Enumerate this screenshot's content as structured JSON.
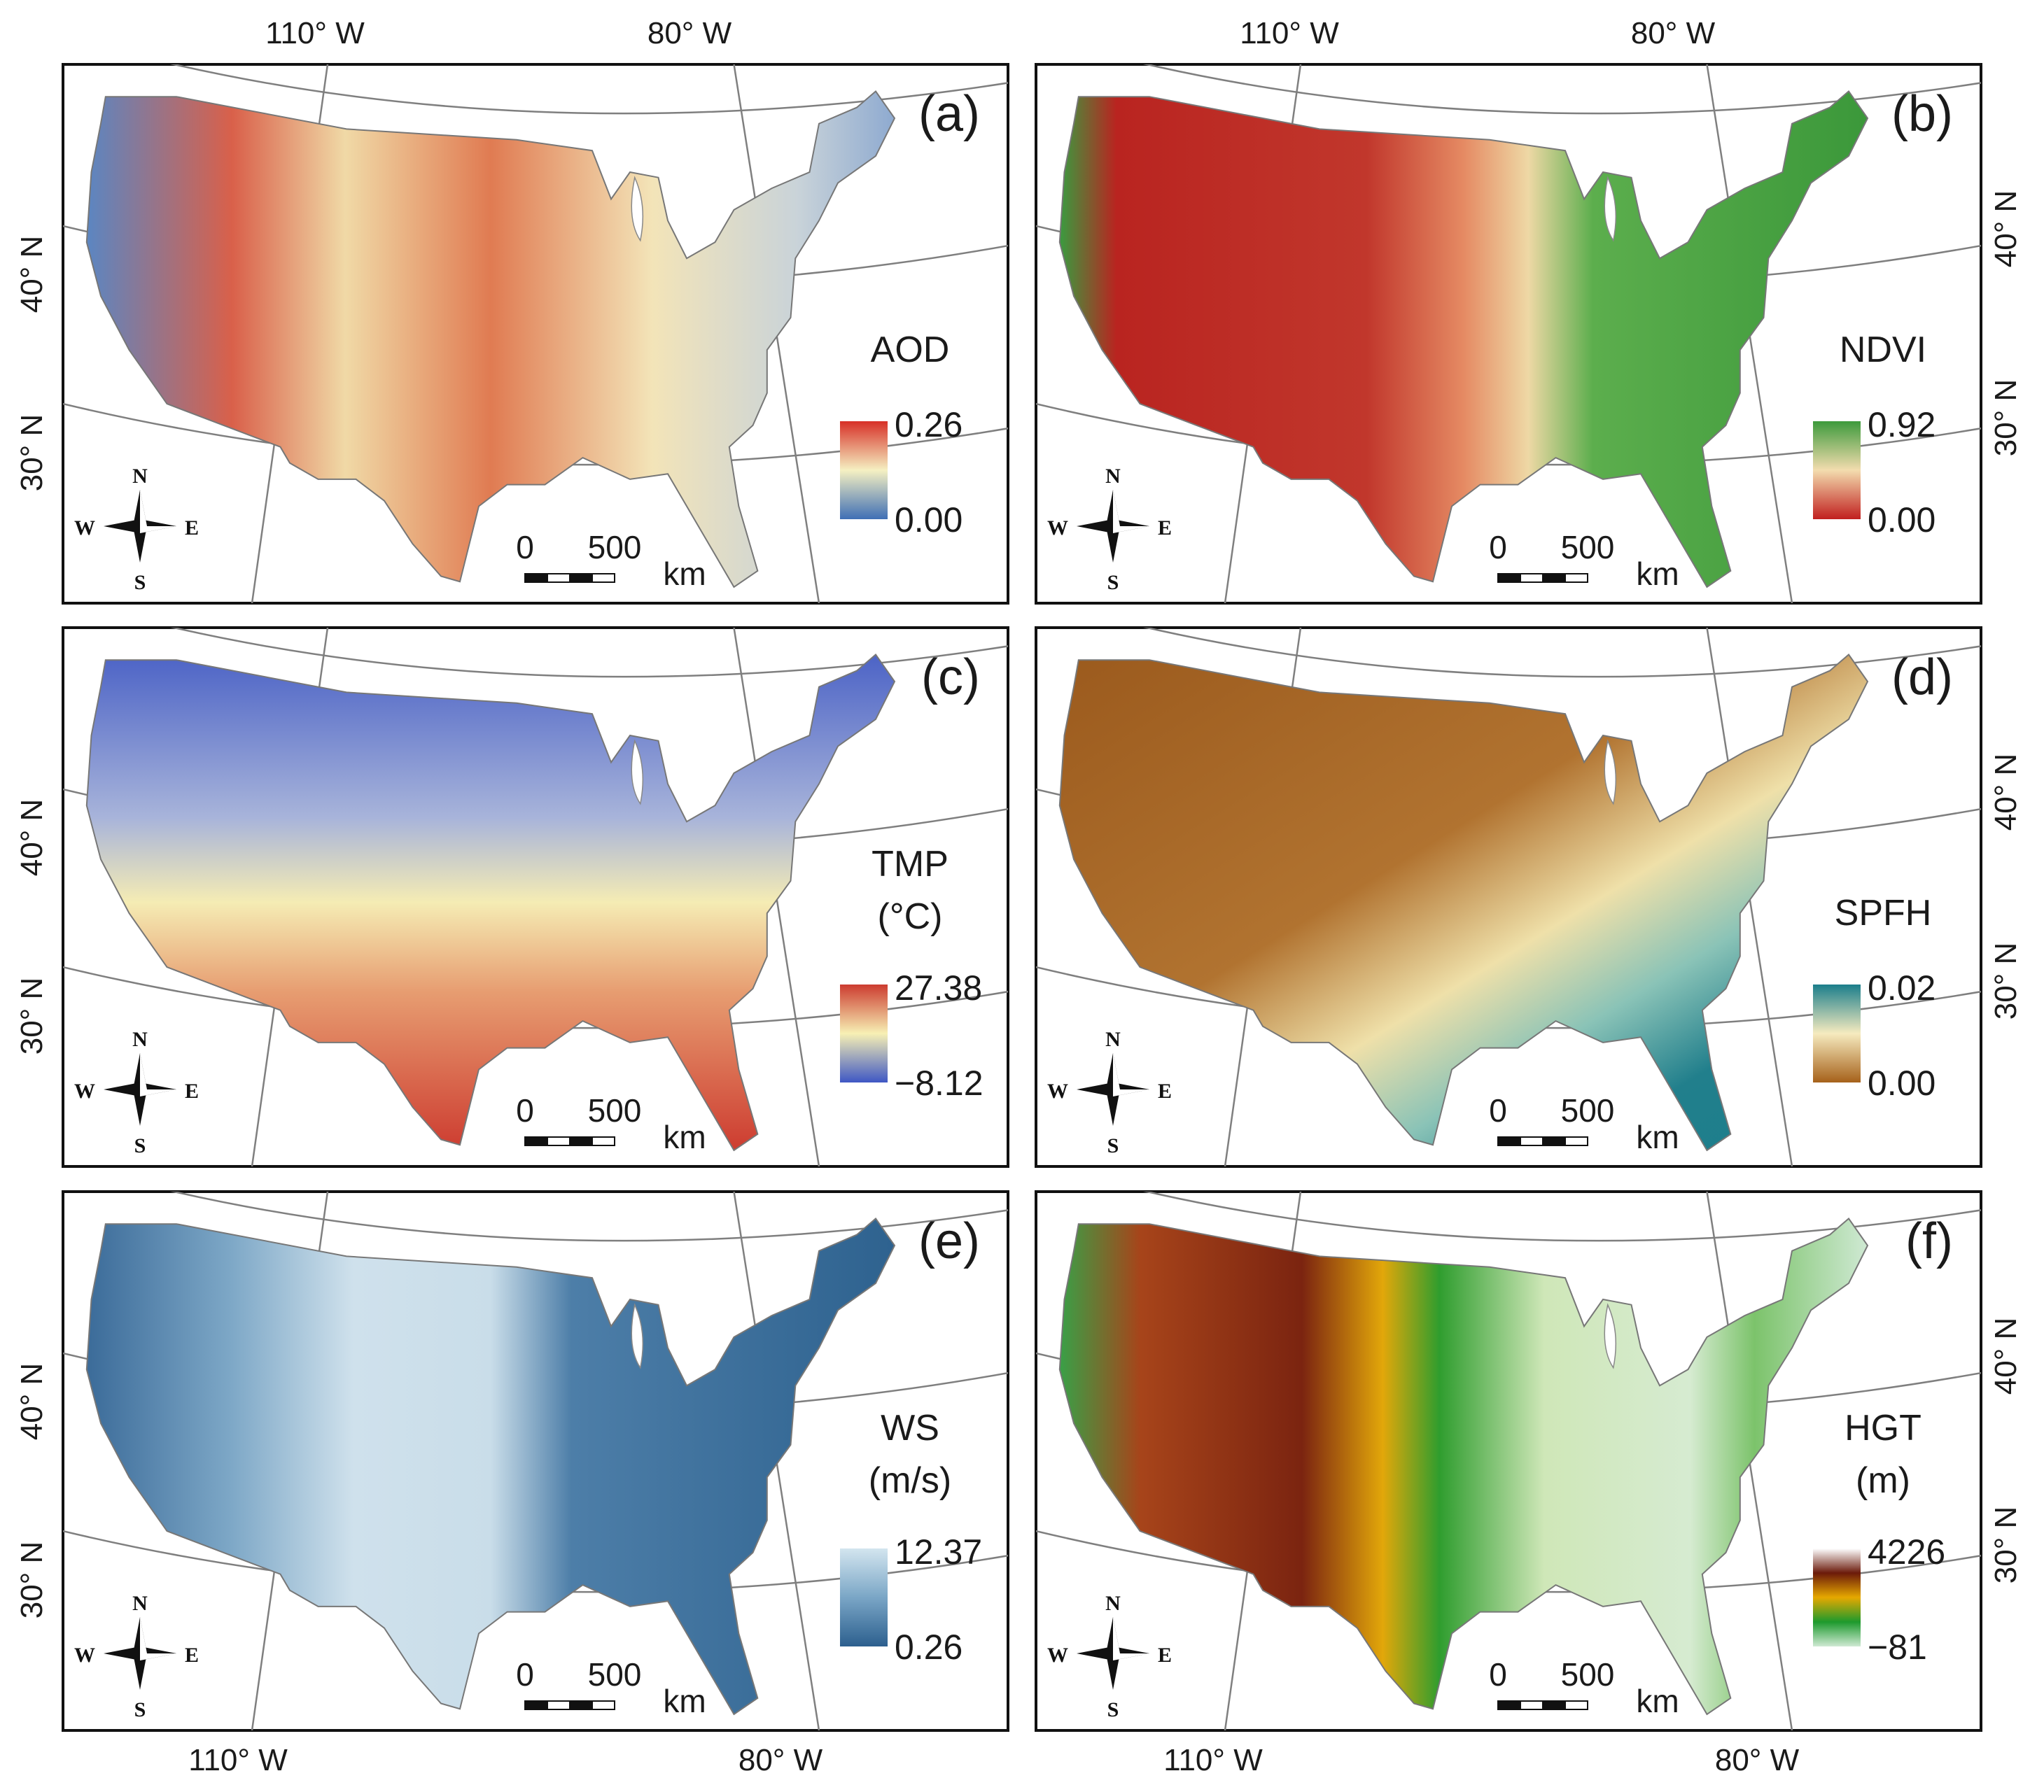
{
  "top_axis": {
    "lon_left": "110° W",
    "lon_right": "80° W"
  },
  "bottom_axis": {
    "lon_left": "110° W",
    "lon_right": "80° W"
  },
  "lat_labels": {
    "upper": "40° N",
    "lower": "30° N"
  },
  "compass": {
    "n": "N",
    "s": "S",
    "e": "E",
    "w": "W"
  },
  "scale_bar": {
    "zero": "0",
    "max": "500",
    "unit": "km"
  },
  "panels": [
    {
      "id": "a",
      "label": "(a)",
      "title": "AOD",
      "unit": "",
      "max": "0.26",
      "min": "0.00",
      "colors": [
        "#3f6fb5",
        "#f5f0c2",
        "#d73027"
      ]
    },
    {
      "id": "b",
      "label": "(b)",
      "title": "NDVI",
      "unit": "",
      "max": "0.92",
      "min": "0.00",
      "colors": [
        "#c1201f",
        "#f3dcae",
        "#3d9a3c"
      ]
    },
    {
      "id": "c",
      "label": "(c)",
      "title": "TMP",
      "unit": "(°C)",
      "max": "27.38",
      "min": "−8.12",
      "colors": [
        "#3e57c4",
        "#f7f0b4",
        "#cc3b2f"
      ]
    },
    {
      "id": "d",
      "label": "(d)",
      "title": "SPFH",
      "unit": "",
      "max": "0.02",
      "min": "0.00",
      "colors": [
        "#a6611a",
        "#f6ebbf",
        "#1b7e8b"
      ]
    },
    {
      "id": "e",
      "label": "(e)",
      "title": "WS",
      "unit": "(m/s)",
      "max": "12.37",
      "min": "0.26",
      "colors": [
        "#2c5f8e",
        "#7aa6c6",
        "#d3e5ef"
      ]
    },
    {
      "id": "f",
      "label": "(f)",
      "title": "HGT",
      "unit": "(m)",
      "max": "4226",
      "min": "−81",
      "colors": [
        "#cfe9d3",
        "#1d9a2d",
        "#e6a800",
        "#6b1a0a",
        "#ffffff"
      ]
    }
  ]
}
